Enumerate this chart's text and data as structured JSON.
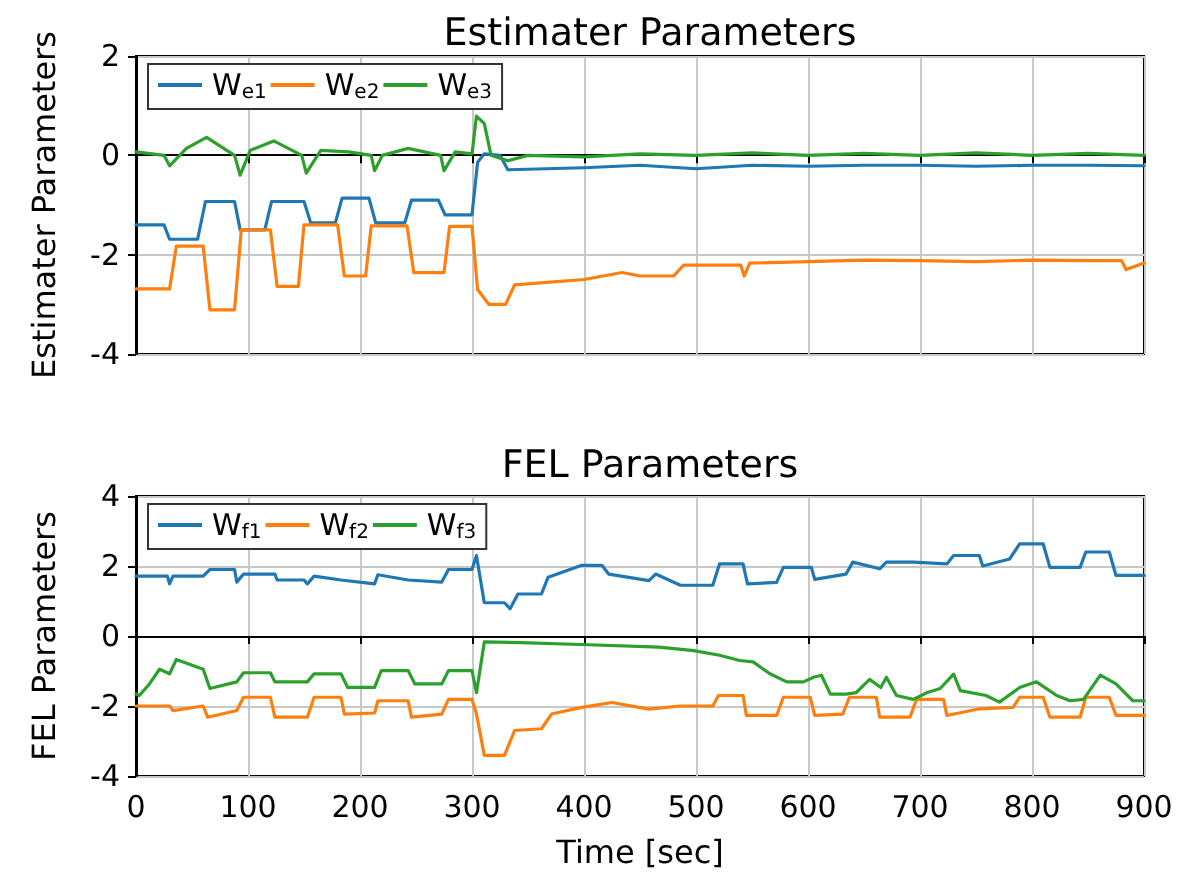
{
  "chart_data": [
    {
      "type": "line",
      "title": "Estimater Parameters",
      "ylabel": "Estimater Parameters",
      "xlim": [
        0,
        900
      ],
      "xticks": [
        0,
        100,
        200,
        300,
        400,
        500,
        600,
        700,
        800,
        900
      ],
      "ylim": [
        -4,
        2
      ],
      "yticks": [
        -4,
        -2,
        0,
        2
      ],
      "tick_labels": "y",
      "grid": true,
      "legend": "top left",
      "marker": "none",
      "series": [
        {
          "name": "W$_{e1}$",
          "color": "#1f77b4",
          "x": [
            0,
            25,
            30,
            38,
            55,
            62,
            88,
            93,
            115,
            121,
            150,
            156,
            178,
            184,
            208,
            214,
            240,
            246,
            270,
            276,
            300,
            305,
            311,
            325,
            332,
            400,
            450,
            500,
            550,
            600,
            650,
            700,
            750,
            800,
            850,
            900
          ],
          "values": [
            -1.4,
            -1.4,
            -1.69,
            -1.69,
            -1.69,
            -0.93,
            -0.93,
            -1.5,
            -1.5,
            -0.93,
            -0.93,
            -1.36,
            -1.36,
            -0.86,
            -0.86,
            -1.36,
            -1.36,
            -0.9,
            -0.9,
            -1.2,
            -1.2,
            -0.14,
            0.03,
            0.0,
            -0.29,
            -0.25,
            -0.2,
            -0.27,
            -0.2,
            -0.22,
            -0.2,
            -0.2,
            -0.22,
            -0.2,
            -0.2,
            -0.21
          ]
        },
        {
          "name": "W$_{e2}$",
          "color": "#ff7f0e",
          "x": [
            0,
            30,
            36,
            60,
            66,
            88,
            94,
            120,
            126,
            145,
            150,
            180,
            186,
            205,
            210,
            242,
            248,
            275,
            280,
            300,
            305,
            315,
            330,
            338,
            400,
            434,
            450,
            480,
            489,
            540,
            543,
            548,
            600,
            650,
            700,
            750,
            800,
            850,
            880,
            884,
            900
          ],
          "values": [
            -2.69,
            -2.69,
            -1.83,
            -1.83,
            -3.11,
            -3.11,
            -1.5,
            -1.5,
            -2.64,
            -2.64,
            -1.4,
            -1.4,
            -2.43,
            -2.43,
            -1.42,
            -1.42,
            -2.36,
            -2.36,
            -1.43,
            -1.43,
            -2.7,
            -3.0,
            -3.0,
            -2.61,
            -2.5,
            -2.36,
            -2.43,
            -2.43,
            -2.21,
            -2.21,
            -2.43,
            -2.17,
            -2.14,
            -2.11,
            -2.12,
            -2.14,
            -2.11,
            -2.12,
            -2.12,
            -2.3,
            -2.17
          ]
        },
        {
          "name": "W$_{e3}$",
          "color": "#2ca02c",
          "x": [
            0,
            25,
            30,
            45,
            63,
            88,
            93,
            102,
            123,
            148,
            152,
            165,
            190,
            210,
            213,
            220,
            243,
            272,
            275,
            285,
            300,
            304,
            311,
            317,
            332,
            350,
            400,
            450,
            500,
            550,
            600,
            650,
            700,
            750,
            800,
            850,
            900
          ],
          "values": [
            0.07,
            0.0,
            -0.21,
            0.14,
            0.36,
            0.0,
            -0.4,
            0.1,
            0.29,
            0.0,
            -0.36,
            0.1,
            0.07,
            0.0,
            -0.31,
            0.0,
            0.14,
            0.0,
            -0.31,
            0.07,
            0.03,
            0.79,
            0.64,
            0.0,
            -0.11,
            0.0,
            -0.03,
            0.03,
            0.0,
            0.05,
            0.0,
            0.04,
            0.0,
            0.05,
            0.0,
            0.04,
            0.0
          ]
        }
      ]
    },
    {
      "type": "line",
      "title": "FEL Parameters",
      "xlabel": "Time [sec]",
      "ylabel": "FEL Parameters",
      "xlim": [
        0,
        900
      ],
      "xticks": [
        0,
        100,
        200,
        300,
        400,
        500,
        600,
        700,
        800,
        900
      ],
      "ylim": [
        -4,
        4
      ],
      "yticks": [
        -4,
        -2,
        0,
        2,
        4
      ],
      "grid": true,
      "legend": "top left",
      "marker": "none",
      "series": [
        {
          "name": "W$_{f1}$",
          "color": "#1f77b4",
          "x": [
            0,
            28,
            30,
            33,
            60,
            66,
            88,
            90,
            96,
            124,
            126,
            150,
            153,
            159,
            183,
            213,
            216,
            243,
            273,
            279,
            300,
            304,
            311,
            329,
            334,
            341,
            362,
            368,
            398,
            416,
            422,
            458,
            464,
            486,
            515,
            521,
            542,
            546,
            572,
            578,
            603,
            606,
            634,
            640,
            664,
            670,
            694,
            724,
            730,
            753,
            756,
            780,
            789,
            810,
            816,
            843,
            848,
            869,
            875,
            900
          ],
          "values": [
            1.71,
            1.71,
            1.49,
            1.71,
            1.71,
            1.9,
            1.9,
            1.54,
            1.77,
            1.77,
            1.6,
            1.6,
            1.49,
            1.71,
            1.6,
            1.49,
            1.75,
            1.6,
            1.54,
            1.9,
            1.9,
            2.3,
            0.95,
            0.95,
            0.78,
            1.2,
            1.2,
            1.68,
            2.02,
            2.02,
            1.77,
            1.58,
            1.77,
            1.45,
            1.45,
            2.06,
            2.06,
            1.49,
            1.53,
            1.96,
            1.96,
            1.62,
            1.77,
            2.11,
            1.92,
            2.11,
            2.11,
            2.06,
            2.3,
            2.3,
            2.0,
            2.2,
            2.63,
            2.63,
            1.96,
            1.96,
            2.4,
            2.4,
            1.73,
            1.73
          ]
        },
        {
          "name": "W$_{f2}$",
          "color": "#ff7f0e",
          "x": [
            0,
            30,
            33,
            60,
            64,
            90,
            96,
            120,
            124,
            153,
            159,
            183,
            186,
            213,
            216,
            243,
            246,
            273,
            279,
            300,
            304,
            311,
            329,
            338,
            362,
            371,
            398,
            425,
            458,
            486,
            515,
            520,
            542,
            545,
            572,
            578,
            602,
            606,
            631,
            637,
            661,
            664,
            691,
            697,
            721,
            724,
            753,
            783,
            789,
            810,
            816,
            843,
            848,
            869,
            875,
            900
          ],
          "values": [
            -2.0,
            -2.0,
            -2.13,
            -2.0,
            -2.32,
            -2.13,
            -1.75,
            -1.75,
            -2.32,
            -2.32,
            -1.75,
            -1.75,
            -2.23,
            -2.2,
            -1.85,
            -1.85,
            -2.32,
            -2.23,
            -1.81,
            -1.81,
            -2.23,
            -3.41,
            -3.41,
            -2.7,
            -2.65,
            -2.23,
            -2.04,
            -1.9,
            -2.09,
            -2.0,
            -2.0,
            -1.7,
            -1.7,
            -2.27,
            -2.27,
            -1.75,
            -1.75,
            -2.27,
            -2.23,
            -1.75,
            -1.75,
            -2.32,
            -2.32,
            -1.81,
            -1.81,
            -2.27,
            -2.08,
            -2.04,
            -1.75,
            -1.75,
            -2.32,
            -2.32,
            -1.75,
            -1.75,
            -2.27,
            -2.27
          ]
        },
        {
          "name": "W$_{f3}$",
          "color": "#2ca02c",
          "x": [
            0,
            3,
            12,
            21,
            30,
            36,
            60,
            66,
            90,
            96,
            120,
            124,
            153,
            159,
            183,
            189,
            213,
            219,
            243,
            249,
            273,
            279,
            300,
            304,
            311,
            344,
            404,
            467,
            498,
            521,
            539,
            551,
            566,
            581,
            596,
            605,
            612,
            620,
            634,
            643,
            655,
            665,
            670,
            679,
            694,
            706,
            718,
            730,
            736,
            759,
            771,
            789,
            804,
            822,
            834,
            846,
            861,
            875,
            890,
            900
          ],
          "values": [
            -1.66,
            -1.7,
            -1.37,
            -0.95,
            -1.08,
            -0.67,
            -0.95,
            -1.5,
            -1.31,
            -1.05,
            -1.05,
            -1.31,
            -1.31,
            -1.08,
            -1.08,
            -1.47,
            -1.47,
            -0.99,
            -0.99,
            -1.37,
            -1.37,
            -0.99,
            -0.99,
            -1.62,
            -0.17,
            -0.19,
            -0.25,
            -0.32,
            -0.42,
            -0.55,
            -0.7,
            -0.74,
            -1.08,
            -1.31,
            -1.31,
            -1.18,
            -1.12,
            -1.66,
            -1.66,
            -1.62,
            -1.24,
            -1.47,
            -1.18,
            -1.7,
            -1.81,
            -1.62,
            -1.5,
            -1.09,
            -1.56,
            -1.7,
            -1.89,
            -1.47,
            -1.31,
            -1.7,
            -1.85,
            -1.81,
            -1.12,
            -1.37,
            -1.85,
            -1.85
          ]
        }
      ]
    }
  ]
}
